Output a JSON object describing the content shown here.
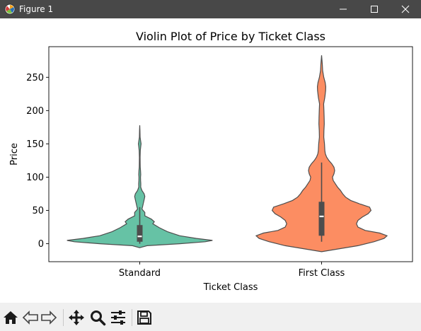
{
  "window": {
    "title": "Figure 1",
    "controls": [
      "minimize-icon",
      "maximize-icon",
      "close-icon"
    ]
  },
  "toolbar": {
    "buttons": [
      "home-icon",
      "back-arrow-icon",
      "forward-arrow-icon",
      "pan-move-icon",
      "zoom-magnifier-icon",
      "configure-subplots-icon",
      "save-disk-icon"
    ]
  },
  "chart_data": {
    "type": "violin",
    "title": "Violin Plot of Price by Ticket Class",
    "xlabel": "Ticket Class",
    "ylabel": "Price",
    "categories": [
      "Standard",
      "First Class"
    ],
    "ylim": [
      -27,
      296
    ],
    "yticks": [
      0,
      50,
      100,
      150,
      200,
      250
    ],
    "colors": [
      "#66c2a5",
      "#fc8d62"
    ],
    "violins": [
      {
        "category": "Standard",
        "color": "#66c2a5",
        "box": {
          "q1": 3,
          "median": 11,
          "q3": 28,
          "whisker_low": 0,
          "whisker_high": 55
        },
        "density": [
          [
            -6,
            0.0
          ],
          [
            -3,
            0.1
          ],
          [
            0,
            0.55
          ],
          [
            3,
            0.9
          ],
          [
            5,
            1.0
          ],
          [
            8,
            0.78
          ],
          [
            12,
            0.55
          ],
          [
            18,
            0.38
          ],
          [
            24,
            0.27
          ],
          [
            30,
            0.18
          ],
          [
            33,
            0.2
          ],
          [
            37,
            0.16
          ],
          [
            42,
            0.07
          ],
          [
            47,
            0.07
          ],
          [
            52,
            0.03
          ],
          [
            56,
            0.04
          ],
          [
            61,
            0.05
          ],
          [
            66,
            0.06
          ],
          [
            71,
            0.07
          ],
          [
            75,
            0.06
          ],
          [
            80,
            0.03
          ],
          [
            85,
            0.014
          ],
          [
            90,
            0.015
          ],
          [
            95,
            0.012
          ],
          [
            100,
            0.011
          ],
          [
            104,
            0.014
          ],
          [
            110,
            0.011
          ],
          [
            115,
            0.007
          ],
          [
            120,
            0.006
          ],
          [
            130,
            0.005
          ],
          [
            140,
            0.008
          ],
          [
            146,
            0.014
          ],
          [
            150,
            0.018
          ],
          [
            155,
            0.012
          ],
          [
            160,
            0.005
          ],
          [
            170,
            0.003
          ],
          [
            178,
            0.0
          ]
        ]
      },
      {
        "category": "First Class",
        "color": "#fc8d62",
        "box": {
          "q1": 12,
          "median": 41,
          "q3": 63,
          "whisker_low": 3,
          "whisker_high": 122
        },
        "density": [
          [
            -12,
            0.0
          ],
          [
            -8,
            0.22
          ],
          [
            -3,
            0.5
          ],
          [
            3,
            0.72
          ],
          [
            8,
            0.86
          ],
          [
            12,
            0.9
          ],
          [
            16,
            0.8
          ],
          [
            20,
            0.6
          ],
          [
            25,
            0.5
          ],
          [
            30,
            0.48
          ],
          [
            35,
            0.5
          ],
          [
            40,
            0.56
          ],
          [
            45,
            0.64
          ],
          [
            50,
            0.68
          ],
          [
            55,
            0.66
          ],
          [
            60,
            0.52
          ],
          [
            65,
            0.4
          ],
          [
            70,
            0.33
          ],
          [
            75,
            0.29
          ],
          [
            80,
            0.26
          ],
          [
            85,
            0.22
          ],
          [
            90,
            0.19
          ],
          [
            95,
            0.16
          ],
          [
            100,
            0.15
          ],
          [
            105,
            0.17
          ],
          [
            110,
            0.18
          ],
          [
            115,
            0.17
          ],
          [
            120,
            0.14
          ],
          [
            125,
            0.1
          ],
          [
            130,
            0.07
          ],
          [
            135,
            0.052
          ],
          [
            140,
            0.045
          ],
          [
            150,
            0.04
          ],
          [
            160,
            0.03
          ],
          [
            170,
            0.032
          ],
          [
            180,
            0.037
          ],
          [
            190,
            0.035
          ],
          [
            200,
            0.032
          ],
          [
            210,
            0.028
          ],
          [
            220,
            0.045
          ],
          [
            230,
            0.055
          ],
          [
            236,
            0.057
          ],
          [
            242,
            0.05
          ],
          [
            250,
            0.03
          ],
          [
            260,
            0.015
          ],
          [
            270,
            0.01
          ],
          [
            283,
            0.0
          ]
        ]
      }
    ]
  }
}
